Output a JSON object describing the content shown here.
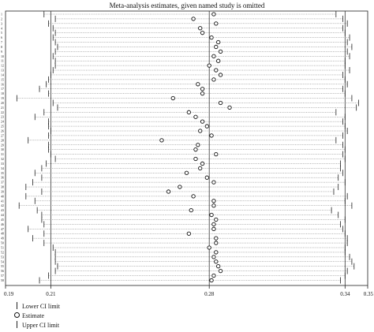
{
  "chart_data": {
    "type": "scatter",
    "title": "Meta-analysis estimates, given named study is omitted",
    "xlim": [
      0.19,
      0.35
    ],
    "x_ticks": [
      "0.19",
      "0.21",
      "0.28",
      "0.34",
      "0.35"
    ],
    "x_tick_values": [
      0.19,
      0.21,
      0.28,
      0.34,
      0.35
    ],
    "reference_lines": [
      0.21,
      0.28,
      0.34
    ],
    "row_labels": [
      "1",
      "2",
      "3",
      "4",
      "5",
      "6",
      "7",
      "8",
      "9",
      "10",
      "11",
      "12",
      "13",
      "14",
      "15",
      "16",
      "17",
      "18",
      "19",
      "20",
      "21",
      "22",
      "23",
      "24",
      "25",
      "26",
      "27",
      "28",
      "29",
      "30",
      "31",
      "32",
      "33",
      "34",
      "35",
      "36",
      "37",
      "38",
      "39",
      "40",
      "41",
      "42",
      "43",
      "44",
      "45",
      "46",
      "47",
      "48",
      "49",
      "50",
      "51",
      "52",
      "53",
      "54",
      "55",
      "56",
      "57",
      "58"
    ],
    "series": [
      {
        "name": "Lower CI limit",
        "values": [
          0.207,
          0.212,
          0.209,
          0.211,
          0.212,
          0.211,
          0.212,
          0.213,
          0.212,
          0.211,
          0.212,
          0.212,
          0.211,
          0.21,
          0.209,
          0.208,
          0.205,
          0.209,
          0.195,
          0.211,
          0.213,
          0.207,
          0.203,
          0.209,
          0.209,
          0.21,
          0.209,
          0.2,
          0.209,
          0.209,
          0.21,
          0.212,
          0.208,
          0.206,
          0.203,
          0.206,
          0.202,
          0.199,
          0.206,
          0.199,
          0.203,
          0.196,
          0.204,
          0.206,
          0.206,
          0.207,
          0.2,
          0.207,
          0.202,
          0.207,
          0.211,
          0.212,
          0.212,
          0.212,
          0.213,
          0.212,
          0.209,
          0.205
        ]
      },
      {
        "name": "Estimate",
        "values": [
          0.282,
          0.273,
          0.283,
          0.276,
          0.277,
          0.281,
          0.284,
          0.283,
          0.285,
          0.282,
          0.284,
          0.28,
          0.283,
          0.285,
          0.282,
          0.275,
          0.277,
          0.277,
          0.264,
          0.285,
          0.289,
          0.271,
          0.274,
          0.277,
          0.279,
          0.276,
          0.281,
          0.259,
          0.275,
          0.274,
          0.283,
          0.274,
          0.277,
          0.276,
          0.27,
          0.279,
          0.282,
          0.267,
          0.262,
          0.273,
          0.282,
          0.282,
          0.272,
          0.281,
          0.283,
          0.282,
          0.282,
          0.271,
          0.283,
          0.283,
          0.28,
          0.283,
          0.282,
          0.283,
          0.284,
          0.285,
          0.282,
          0.281
        ]
      },
      {
        "name": "Upper CI limit",
        "values": [
          0.336,
          0.339,
          0.341,
          0.339,
          0.34,
          0.342,
          0.341,
          0.343,
          0.341,
          0.342,
          0.34,
          0.34,
          0.342,
          0.339,
          0.34,
          0.341,
          0.339,
          0.34,
          0.343,
          0.346,
          0.345,
          0.336,
          0.34,
          0.339,
          0.34,
          0.341,
          0.339,
          0.336,
          0.339,
          0.34,
          0.339,
          0.34,
          0.338,
          0.338,
          0.339,
          0.337,
          0.34,
          0.337,
          0.335,
          0.341,
          0.34,
          0.343,
          0.334,
          0.337,
          0.34,
          0.338,
          0.339,
          0.34,
          0.341,
          0.341,
          0.34,
          0.34,
          0.342,
          0.343,
          0.344,
          0.341,
          0.34,
          0.338
        ]
      }
    ],
    "legend": {
      "placement": "bottom-left",
      "items": [
        "Lower CI limit",
        "Estimate",
        "Upper CI limit"
      ]
    },
    "grid": false
  }
}
